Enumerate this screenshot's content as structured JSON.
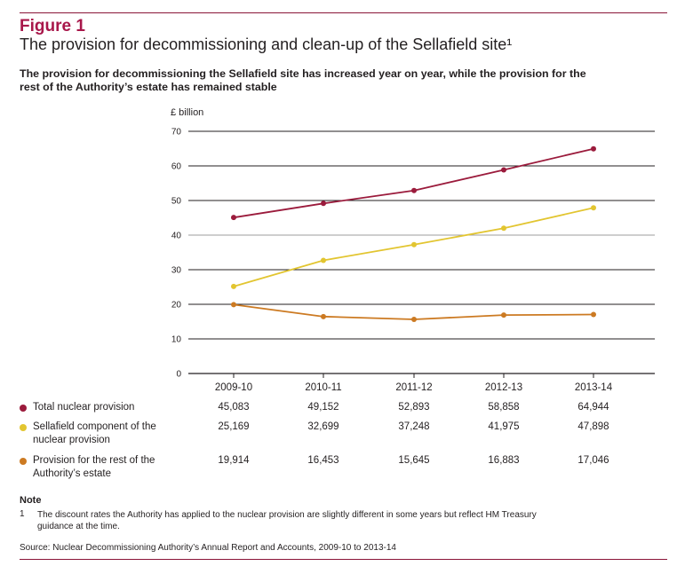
{
  "figure": {
    "label": "Figure 1",
    "title": "The provision for decommissioning and clean-up of the Sellafield site¹",
    "subtitle": "The provision for decommissioning the Sellafield site has increased year on year, while the provision for the rest of the Authority’s estate has remained stable"
  },
  "colors": {
    "rule": "#8a1538",
    "label": "#a8174a",
    "total": "#9b1b3c",
    "sellafield": "#e2c530",
    "rest": "#cc7a22"
  },
  "chart_data": {
    "type": "line",
    "ylabel": "£ billion",
    "ylim": [
      0,
      70
    ],
    "yticks": [
      0,
      10,
      20,
      30,
      40,
      50,
      60,
      70
    ],
    "grid": true,
    "categories": [
      "2009-10",
      "2010-11",
      "2011-12",
      "2012-13",
      "2013-14"
    ],
    "series": [
      {
        "name": "Total nuclear provision",
        "values": [
          45.083,
          49.152,
          52.893,
          58.858,
          64.944
        ],
        "labels": [
          "45,083",
          "49,152",
          "52,893",
          "58,858",
          "64,944"
        ],
        "color": "#9b1b3c"
      },
      {
        "name": "Sellafield component of the nuclear provision",
        "values": [
          25.169,
          32.699,
          37.248,
          41.975,
          47.898
        ],
        "labels": [
          "25,169",
          "32,699",
          "37,248",
          "41,975",
          "47,898"
        ],
        "color": "#e2c530"
      },
      {
        "name": "Provision for the rest of the Authority’s estate",
        "values": [
          19.914,
          16.453,
          15.645,
          16.883,
          17.046
        ],
        "labels": [
          "19,914",
          "16,453",
          "15,645",
          "16,883",
          "17,046"
        ],
        "color": "#cc7a22"
      }
    ]
  },
  "notes": {
    "heading": "Note",
    "number": "1",
    "text": "The discount rates the Authority has applied to the nuclear provision are slightly different in some years but reflect HM Treasury guidance at the time."
  },
  "source": "Source: Nuclear Decommissioning Authority’s Annual Report and Accounts, 2009-10 to 2013-14"
}
